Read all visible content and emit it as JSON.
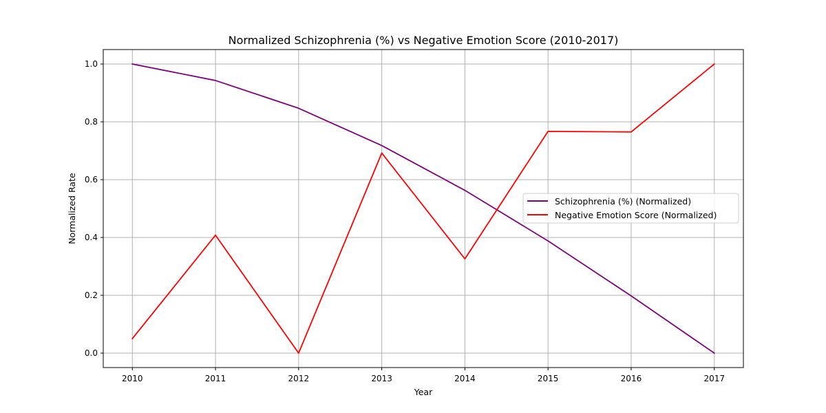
{
  "chart_data": {
    "type": "line",
    "title": "Normalized Schizophrenia (%) vs Negative Emotion Score (2010-2017)",
    "xlabel": "Year",
    "ylabel": "Normalized Rate",
    "x": [
      2010,
      2011,
      2012,
      2013,
      2014,
      2015,
      2016,
      2017
    ],
    "x_tick_labels": [
      "2010",
      "2011",
      "2012",
      "2013",
      "2014",
      "2015",
      "2016",
      "2017"
    ],
    "y_ticks": [
      0.0,
      0.2,
      0.4,
      0.6,
      0.8,
      1.0
    ],
    "y_tick_labels": [
      "0.0",
      "0.2",
      "0.4",
      "0.6",
      "0.8",
      "1.0"
    ],
    "xlim": [
      2009.65,
      2017.35
    ],
    "ylim": [
      -0.05,
      1.05
    ],
    "grid": true,
    "legend_position": "center-right",
    "series": [
      {
        "name": "Schizophrenia (%) (Normalized)",
        "color": "#800080",
        "values": [
          1.0,
          0.943,
          0.847,
          0.718,
          0.563,
          0.388,
          0.198,
          0.0
        ]
      },
      {
        "name": "Negative Emotion Score (Normalized)",
        "color": "#ff0000",
        "values": [
          0.05,
          0.408,
          0.0,
          0.692,
          0.326,
          0.767,
          0.765,
          1.0
        ]
      }
    ]
  }
}
